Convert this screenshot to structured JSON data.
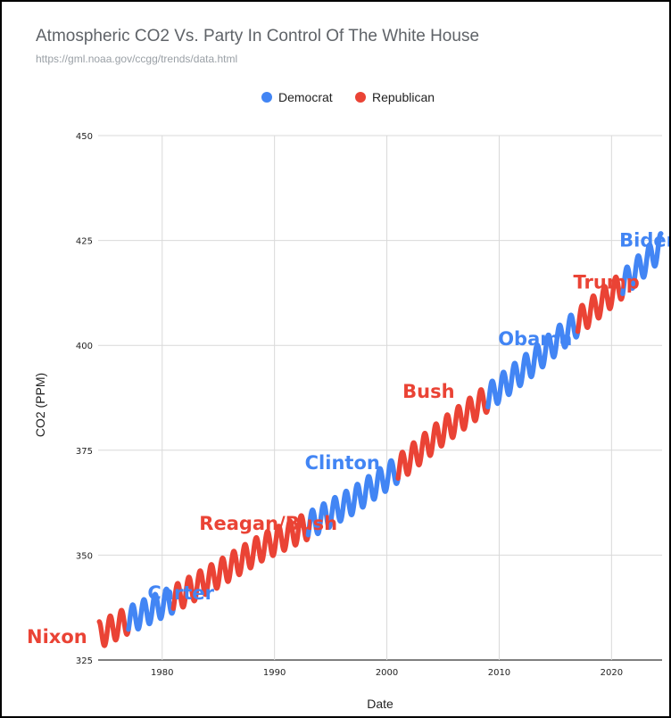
{
  "chart_data": {
    "type": "line",
    "title": "Atmospheric CO2 Vs. Party In Control Of The White House",
    "subtitle": "https://gml.noaa.gov/ccgg/trends/data.html",
    "xlabel": "Date",
    "ylabel": "CO2 (PPM)",
    "xlim": [
      1974.3,
      2024.5
    ],
    "ylim": [
      325,
      450
    ],
    "x_ticks": [
      1980,
      1990,
      2000,
      2010,
      2020
    ],
    "y_ticks": [
      325,
      350,
      375,
      400,
      425,
      450
    ],
    "grid": true,
    "legend_position": "top",
    "seasonal_amplitude_ppm": 3.2,
    "series": [
      {
        "name": "Democrat",
        "color": "#4285f4"
      },
      {
        "name": "Republican",
        "color": "#ea4335"
      }
    ],
    "trend": {
      "x": [
        1974.4,
        1977.0,
        1981.0,
        1985.0,
        1989.0,
        1993.0,
        1997.0,
        2001.0,
        2005.0,
        2009.0,
        2013.0,
        2017.0,
        2021.0,
        2024.4
      ],
      "y": [
        331.0,
        334.5,
        339.5,
        345.5,
        352.0,
        357.0,
        363.0,
        370.5,
        379.5,
        387.5,
        396.0,
        405.5,
        414.5,
        423.5
      ]
    },
    "terms": [
      {
        "label": "Nixon",
        "party": "Republican",
        "start": 1974.4,
        "end": 1977.0,
        "label_x": 1974.7,
        "label_y": 329
      },
      {
        "label": "Carter",
        "party": "Democrat",
        "start": 1977.0,
        "end": 1981.0,
        "label_x": 1978.7,
        "label_y": 339.5
      },
      {
        "label": "Reagan/Bush",
        "party": "Republican",
        "start": 1981.0,
        "end": 1993.0,
        "label_x": 1983.3,
        "label_y": 356
      },
      {
        "label": "Clinton",
        "party": "Democrat",
        "start": 1993.0,
        "end": 2001.0,
        "label_x": 1992.7,
        "label_y": 370.5
      },
      {
        "label": "Bush",
        "party": "Republican",
        "start": 2001.0,
        "end": 2009.0,
        "label_x": 2001.4,
        "label_y": 387.5
      },
      {
        "label": "Obama",
        "party": "Democrat",
        "start": 2009.0,
        "end": 2017.0,
        "label_x": 2009.9,
        "label_y": 400
      },
      {
        "label": "Trump",
        "party": "Republican",
        "start": 2017.0,
        "end": 2021.0,
        "label_x": 2016.6,
        "label_y": 413.5
      },
      {
        "label": "Biden",
        "party": "Democrat",
        "start": 2021.0,
        "end": 2024.4,
        "label_x": 2020.7,
        "label_y": 423.5
      }
    ]
  }
}
